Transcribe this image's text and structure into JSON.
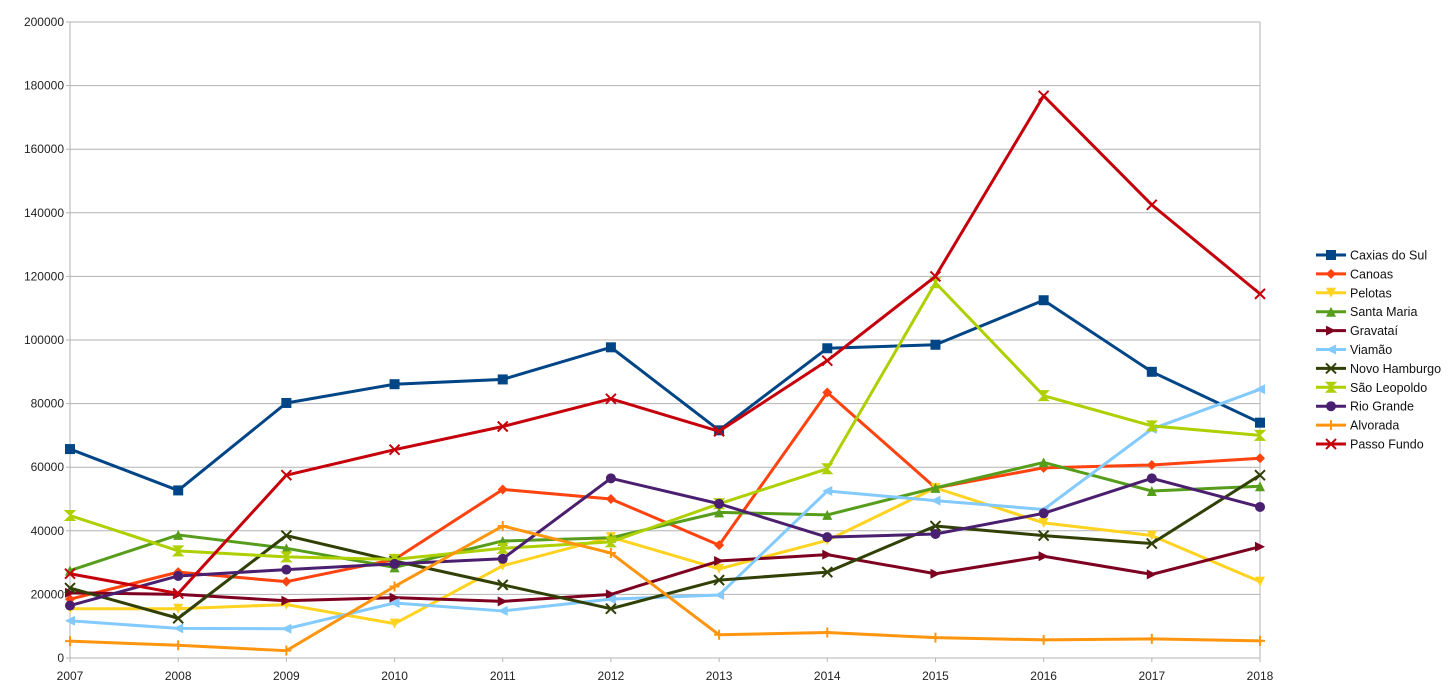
{
  "chart_data": {
    "type": "line",
    "title": "",
    "xlabel": "",
    "ylabel": "",
    "ylim": [
      0,
      200000
    ],
    "yticks": [
      "0",
      "20000",
      "40000",
      "60000",
      "80000",
      "100000",
      "120000",
      "140000",
      "160000",
      "180000",
      "200000"
    ],
    "grid": true,
    "legend_position": "right",
    "x": [
      "2007",
      "2008",
      "2009",
      "2010",
      "2011",
      "2012",
      "2013",
      "2014",
      "2015",
      "2016",
      "2017",
      "2018"
    ],
    "series": [
      {
        "name": "Caxias do Sul",
        "color": "#004586",
        "marker": "square",
        "values": [
          65700,
          52700,
          80200,
          86100,
          87600,
          97700,
          71600,
          97400,
          98500,
          112500,
          90000,
          74000
        ]
      },
      {
        "name": "Canoas",
        "color": "#ff420e",
        "marker": "diamond",
        "values": [
          18500,
          27000,
          24000,
          31000,
          53000,
          50000,
          35500,
          83500,
          53500,
          59800,
          60700,
          62800
        ]
      },
      {
        "name": "Pelotas",
        "color": "#ffd320",
        "marker": "triangle-down",
        "values": [
          15500,
          15500,
          16800,
          10800,
          29000,
          38000,
          28000,
          37000,
          53500,
          42500,
          38500,
          24000
        ]
      },
      {
        "name": "Santa Maria",
        "color": "#579d1c",
        "marker": "triangle-up",
        "values": [
          27500,
          38700,
          34500,
          28500,
          36800,
          37800,
          45800,
          45000,
          53500,
          61500,
          52500,
          54000
        ]
      },
      {
        "name": "Gravataí",
        "color": "#7e0021",
        "marker": "triangle-right",
        "values": [
          20500,
          20000,
          18000,
          19000,
          17800,
          20000,
          30500,
          32500,
          26500,
          32000,
          26300,
          35000
        ]
      },
      {
        "name": "Viamão",
        "color": "#83caff",
        "marker": "triangle-left",
        "values": [
          11700,
          9300,
          9200,
          17300,
          14800,
          18500,
          19800,
          52500,
          49500,
          46700,
          72000,
          84500
        ]
      },
      {
        "name": "Novo Hamburgo",
        "color": "#314004",
        "marker": "bowtie",
        "values": [
          22000,
          12500,
          38500,
          30500,
          23000,
          15500,
          24500,
          27000,
          41500,
          38500,
          36000,
          57500
        ]
      },
      {
        "name": "São Leopoldo",
        "color": "#aecf00",
        "marker": "hourglass",
        "values": [
          44800,
          33700,
          31800,
          31000,
          34500,
          36500,
          48500,
          59500,
          118000,
          82500,
          73000,
          70000
        ]
      },
      {
        "name": "Rio Grande",
        "color": "#4b1f6f",
        "marker": "circle",
        "values": [
          16500,
          25800,
          27800,
          29600,
          31200,
          56500,
          48500,
          38000,
          39000,
          45500,
          56500,
          47500
        ]
      },
      {
        "name": "Alvorada",
        "color": "#ff950e",
        "marker": "plus",
        "values": [
          5300,
          4000,
          2300,
          22500,
          41500,
          33000,
          7300,
          8000,
          6400,
          5700,
          6000,
          5400
        ]
      },
      {
        "name": "Passo Fundo",
        "color": "#c5000b",
        "marker": "x",
        "values": [
          26500,
          20300,
          57500,
          65500,
          72800,
          81500,
          71300,
          93500,
          120000,
          176800,
          142500,
          114500
        ]
      }
    ]
  }
}
